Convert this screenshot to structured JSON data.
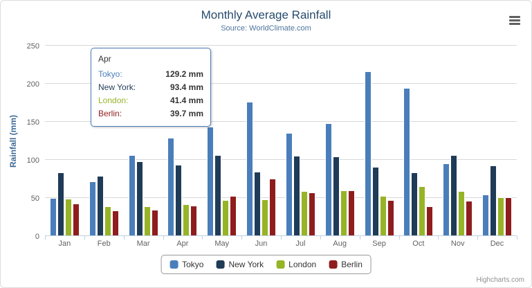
{
  "chart": {
    "title": "Monthly Average Rainfall",
    "subtitle": "Source: WorldClimate.com",
    "y_axis_title": "Rainfall (mm)",
    "credits": "Highcharts.com"
  },
  "tooltip": {
    "header": "Apr",
    "rows": [
      {
        "label": "Tokyo:",
        "value": "129.2 mm",
        "color": "#4a7ebb"
      },
      {
        "label": "New York:",
        "value": "93.4 mm",
        "color": "#1f3b57"
      },
      {
        "label": "London:",
        "value": "41.4 mm",
        "color": "#96b426"
      },
      {
        "label": "Berlin:",
        "value": "39.7 mm",
        "color": "#8f1d1d"
      }
    ]
  },
  "chart_data": {
    "type": "bar",
    "title": "Monthly Average Rainfall",
    "subtitle": "Source: WorldClimate.com",
    "xlabel": "",
    "ylabel": "Rainfall (mm)",
    "ylim": [
      0,
      250
    ],
    "ytick_step": 50,
    "grid": true,
    "legend_position": "bottom",
    "categories": [
      "Jan",
      "Feb",
      "Mar",
      "Apr",
      "May",
      "Jun",
      "Jul",
      "Aug",
      "Sep",
      "Oct",
      "Nov",
      "Dec"
    ],
    "series": [
      {
        "name": "Tokyo",
        "color": "#4a7ebb",
        "values": [
          49.9,
          71.5,
          106.4,
          129.2,
          144.0,
          176.0,
          135.6,
          148.5,
          216.4,
          194.1,
          95.6,
          54.4
        ]
      },
      {
        "name": "New York",
        "color": "#1f3b57",
        "values": [
          83.6,
          78.8,
          98.5,
          93.4,
          106.0,
          84.5,
          105.0,
          104.3,
          91.2,
          83.5,
          106.6,
          92.3
        ]
      },
      {
        "name": "London",
        "color": "#96b426",
        "values": [
          48.9,
          38.8,
          39.3,
          41.4,
          47.0,
          48.3,
          59.0,
          59.6,
          52.4,
          65.2,
          59.3,
          51.2
        ]
      },
      {
        "name": "Berlin",
        "color": "#8f1d1d",
        "values": [
          42.4,
          33.2,
          34.5,
          39.7,
          52.6,
          75.5,
          57.4,
          60.4,
          47.6,
          39.1,
          46.8,
          51.1
        ]
      }
    ]
  }
}
